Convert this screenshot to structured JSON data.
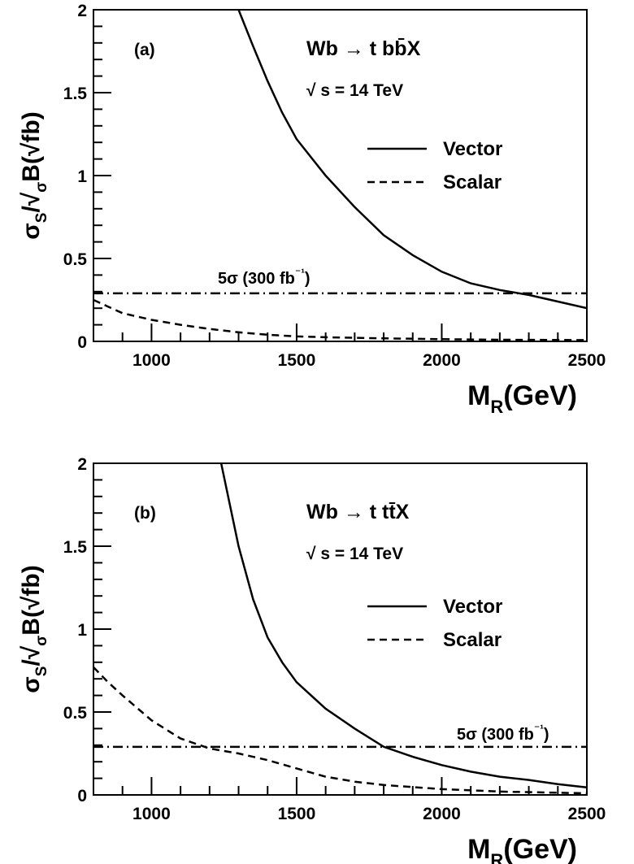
{
  "chart_data": [
    {
      "type": "line",
      "panel_label": "(a)",
      "process": "Wb → t bb̄X",
      "energy": "√ s = 14 TeV",
      "xlabel": "M_R(GeV)",
      "ylabel": "σS/√σB(√fb)",
      "xlim": [
        800,
        2500
      ],
      "ylim": [
        0,
        2
      ],
      "xticks": [
        "1000",
        "1500",
        "2000",
        "2500"
      ],
      "yticks": [
        "0",
        "0.5",
        "1",
        "1.5",
        "2"
      ],
      "legend_position": "right",
      "threshold": {
        "label": "5σ (300 fb⁻¹)",
        "value": 0.29
      },
      "series": [
        {
          "name": "Vector",
          "style": "solid",
          "x": [
            1300,
            1350,
            1400,
            1450,
            1500,
            1600,
            1700,
            1800,
            1900,
            2000,
            2100,
            2200,
            2300,
            2400,
            2500
          ],
          "y": [
            2.0,
            1.78,
            1.57,
            1.38,
            1.22,
            1.0,
            0.81,
            0.64,
            0.52,
            0.42,
            0.35,
            0.31,
            0.28,
            0.24,
            0.2
          ]
        },
        {
          "name": "Scalar",
          "style": "dashed",
          "x": [
            800,
            850,
            900,
            1000,
            1100,
            1200,
            1300,
            1400,
            1500,
            1600,
            1800,
            2000,
            2200,
            2500
          ],
          "y": [
            0.25,
            0.21,
            0.17,
            0.13,
            0.1,
            0.075,
            0.055,
            0.04,
            0.03,
            0.025,
            0.018,
            0.013,
            0.01,
            0.008
          ]
        }
      ]
    },
    {
      "type": "line",
      "panel_label": "(b)",
      "process": "Wb → t tt̄X",
      "energy": "√ s = 14 TeV",
      "xlabel": "M_R(GeV)",
      "ylabel": "σS/√σB(√fb)",
      "xlim": [
        800,
        2500
      ],
      "ylim": [
        0,
        2
      ],
      "xticks": [
        "1000",
        "1500",
        "2000",
        "2500"
      ],
      "yticks": [
        "0",
        "0.5",
        "1",
        "1.5",
        "2"
      ],
      "legend_position": "right",
      "threshold": {
        "label": "5σ (300 fb⁻¹)",
        "value": 0.29
      },
      "series": [
        {
          "name": "Vector",
          "style": "solid",
          "x": [
            1240,
            1300,
            1350,
            1400,
            1450,
            1500,
            1600,
            1700,
            1800,
            1900,
            2000,
            2100,
            2200,
            2300,
            2400,
            2500
          ],
          "y": [
            2.0,
            1.5,
            1.18,
            0.95,
            0.8,
            0.68,
            0.52,
            0.4,
            0.29,
            0.23,
            0.18,
            0.14,
            0.11,
            0.09,
            0.065,
            0.045
          ]
        },
        {
          "name": "Scalar",
          "style": "dashed",
          "x": [
            800,
            850,
            900,
            1000,
            1100,
            1200,
            1300,
            1400,
            1500,
            1600,
            1700,
            1800,
            2000,
            2200,
            2500
          ],
          "y": [
            0.77,
            0.68,
            0.6,
            0.45,
            0.34,
            0.28,
            0.25,
            0.21,
            0.16,
            0.11,
            0.08,
            0.06,
            0.035,
            0.02,
            0.01
          ]
        }
      ]
    }
  ]
}
